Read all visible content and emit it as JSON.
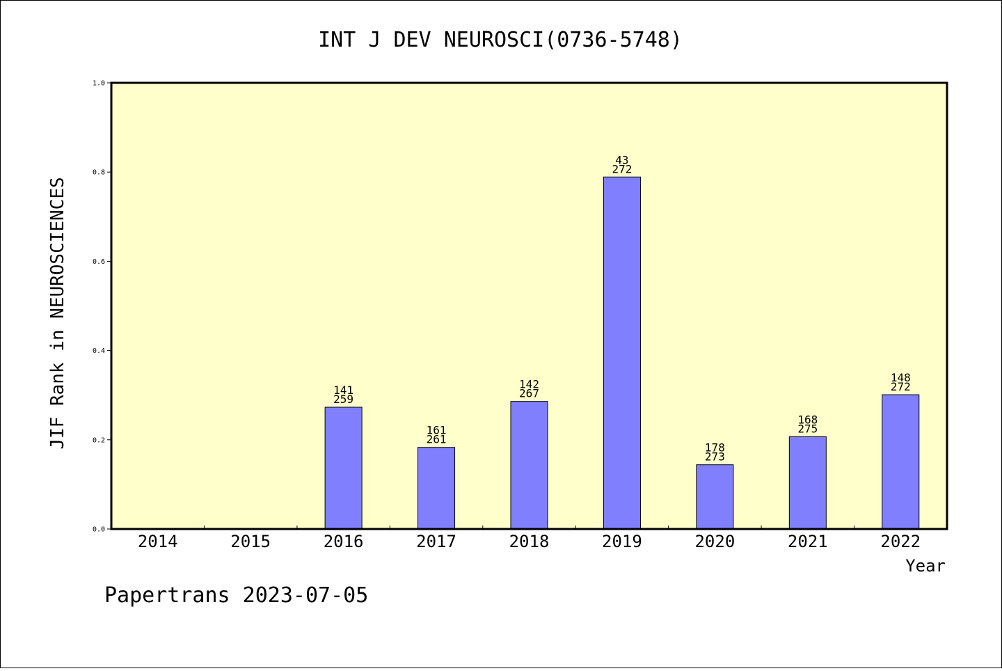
{
  "chart_data": {
    "type": "bar",
    "title": "INT J DEV NEUROSCI(0736-5748)",
    "xlabel": "Year",
    "ylabel": "JIF Rank in NEUROSCIENCES",
    "categories": [
      "2014",
      "2015",
      "2016",
      "2017",
      "2018",
      "2019",
      "2020",
      "2021",
      "2022"
    ],
    "values": [
      null,
      null,
      0.273,
      0.183,
      0.286,
      0.789,
      0.144,
      0.207,
      0.301
    ],
    "bar_labels": [
      null,
      null,
      {
        "rank": "141",
        "total": "259"
      },
      {
        "rank": "161",
        "total": "261"
      },
      {
        "rank": "142",
        "total": "267"
      },
      {
        "rank": "43",
        "total": "272"
      },
      {
        "rank": "178",
        "total": "273"
      },
      {
        "rank": "168",
        "total": "275"
      },
      {
        "rank": "148",
        "total": "272"
      }
    ],
    "yticks": [
      "0.0",
      "0.2",
      "0.4",
      "0.6",
      "0.8",
      "1.0"
    ],
    "ylim": [
      0,
      1.0
    ],
    "grid": false,
    "colors": {
      "plot_background": "#ffffcc",
      "bar": "#8080ff",
      "bar_edge": "#000000"
    }
  },
  "footer": "Papertrans 2023-07-05"
}
